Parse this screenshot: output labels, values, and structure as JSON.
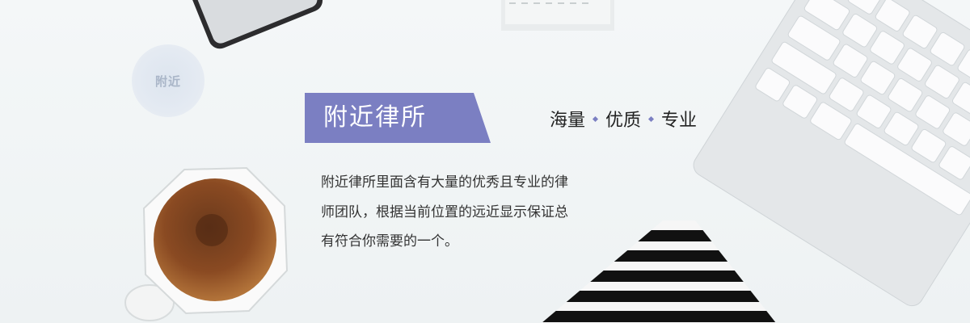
{
  "badge": "附近",
  "title": "附近律所",
  "tagline": [
    "海量",
    "优质",
    "专业"
  ],
  "description": [
    "附近律所里面含有大量的优秀且专业的律",
    "师团队，根据当前位置的远近显示保证总",
    "有符合你需要的一个。"
  ]
}
